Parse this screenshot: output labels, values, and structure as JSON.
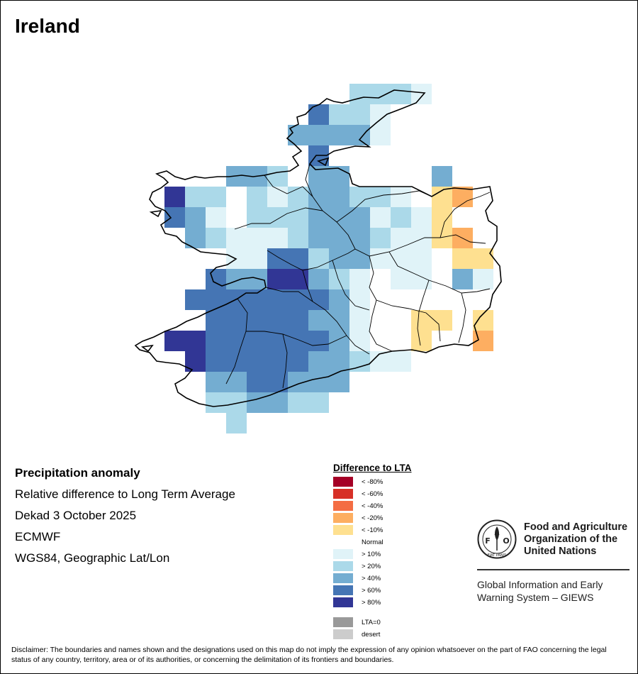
{
  "title": "Ireland",
  "info": {
    "line1": "Precipitation anomaly",
    "line2": "Relative difference to Long Term Average",
    "line3": "Dekad 3 October 2025",
    "line4": "ECMWF",
    "line5": "WGS84, Geographic Lat/Lon"
  },
  "legend": {
    "title": "Difference to LTA",
    "items": [
      {
        "label": "< -80%",
        "color": "#a50026"
      },
      {
        "label": "< -60%",
        "color": "#d73027"
      },
      {
        "label": "< -40%",
        "color": "#f46d43"
      },
      {
        "label": "< -20%",
        "color": "#fdae61"
      },
      {
        "label": "< -10%",
        "color": "#fee090"
      },
      {
        "label": "Normal",
        "color": "#ffffff"
      },
      {
        "label": "> 10%",
        "color": "#e0f3f8"
      },
      {
        "label": "> 20%",
        "color": "#abd9e9"
      },
      {
        "label": "> 40%",
        "color": "#74add1"
      },
      {
        "label": "> 60%",
        "color": "#4575b4"
      },
      {
        "label": "> 80%",
        "color": "#313695"
      }
    ],
    "extra": [
      {
        "label": "LTA=0",
        "color": "#999999"
      },
      {
        "label": "desert",
        "color": "#cccccc"
      }
    ]
  },
  "logo": {
    "letters": "FAO",
    "ring_text": "FIAT PANIS",
    "name_line1": "Food and Agriculture",
    "name_line2": "Organization of the",
    "name_line3": "United Nations",
    "giews_line1": "Global Information and Early",
    "giews_line2": "Warning System – GIEWS"
  },
  "disclaimer": "Disclaimer: The boundaries and names shown and the designations used on this map do not imply the expression of any opinion whatsoever on the part of FAO concerning the legal status of any country, territory, area or of its authorities, or concerning the delimitation of its frontiers and boundaries.",
  "grid": {
    "columns": [
      "-10.5",
      "-10.0",
      "-9.5",
      "-9.0",
      "-8.5",
      "-8.0",
      "-7.5",
      "-7.0",
      "-6.5",
      "-6.0"
    ],
    "rows": [
      {
        "lat": "55.25",
        "classes": [
          0,
          0,
          0,
          0,
          0,
          0,
          0,
          0,
          0,
          0,
          0,
          0,
          0,
          0,
          0,
          0,
          0,
          0,
          0,
          0
        ]
      },
      {
        "lat": "55.0",
        "classes": [
          0,
          0,
          0,
          0,
          0,
          0,
          0,
          0,
          0,
          0,
          0,
          0,
          0,
          0,
          0,
          0,
          0,
          0,
          0,
          0
        ]
      }
    ]
  }
}
